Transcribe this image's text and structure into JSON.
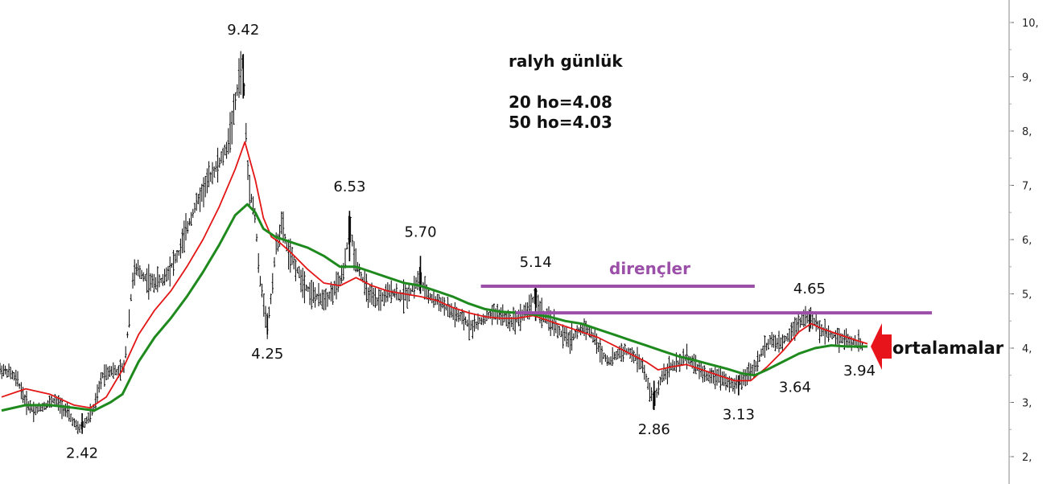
{
  "chart_data": {
    "type": "line",
    "title": "ralyh günlük",
    "title_lines": [
      "20 ho=4.08",
      "50 ho=4.03"
    ],
    "y_axis": {
      "side": "right",
      "ylim": [
        1.5,
        10.4
      ],
      "ticks": [
        2,
        3,
        4,
        5,
        6,
        7,
        8,
        9,
        10
      ],
      "tick_labels": [
        "2,",
        "3,",
        "4,",
        "5,",
        "6,",
        "7,",
        "8,",
        "9,",
        "10,"
      ]
    },
    "x_range": [
      0,
      1070
    ],
    "series": [
      {
        "name": "",
        "kind": "price",
        "color": "#000000",
        "points": [
          [
            0,
            3.6
          ],
          [
            10,
            3.55
          ],
          [
            20,
            3.4
          ],
          [
            30,
            3.0
          ],
          [
            40,
            2.85
          ],
          [
            55,
            2.95
          ],
          [
            65,
            3.05
          ],
          [
            80,
            2.85
          ],
          [
            95,
            2.5
          ],
          [
            105,
            2.65
          ],
          [
            115,
            2.9
          ],
          [
            125,
            3.5
          ],
          [
            135,
            3.6
          ],
          [
            145,
            3.55
          ],
          [
            152,
            3.65
          ],
          [
            158,
            4.5
          ],
          [
            163,
            5.3
          ],
          [
            168,
            5.45
          ],
          [
            175,
            5.35
          ],
          [
            185,
            5.2
          ],
          [
            200,
            5.25
          ],
          [
            210,
            5.5
          ],
          [
            220,
            5.75
          ],
          [
            230,
            6.2
          ],
          [
            240,
            6.6
          ],
          [
            250,
            6.9
          ],
          [
            260,
            7.2
          ],
          [
            270,
            7.4
          ],
          [
            280,
            7.7
          ],
          [
            288,
            8.3
          ],
          [
            295,
            9.0
          ],
          [
            300,
            9.3
          ],
          [
            303,
            8.1
          ],
          [
            306,
            7.2
          ],
          [
            310,
            6.8
          ],
          [
            315,
            6.4
          ],
          [
            320,
            5.3
          ],
          [
            325,
            4.9
          ],
          [
            330,
            4.4
          ],
          [
            335,
            5.0
          ],
          [
            340,
            5.8
          ],
          [
            348,
            6.3
          ],
          [
            355,
            5.8
          ],
          [
            365,
            5.5
          ],
          [
            375,
            5.2
          ],
          [
            385,
            5.0
          ],
          [
            395,
            4.9
          ],
          [
            405,
            4.95
          ],
          [
            415,
            5.1
          ],
          [
            425,
            5.4
          ],
          [
            432,
            6.3
          ],
          [
            438,
            5.7
          ],
          [
            445,
            5.4
          ],
          [
            455,
            5.0
          ],
          [
            465,
            4.85
          ],
          [
            475,
            4.95
          ],
          [
            485,
            5.05
          ],
          [
            495,
            4.95
          ],
          [
            505,
            5.0
          ],
          [
            515,
            5.2
          ],
          [
            520,
            5.3
          ],
          [
            525,
            5.05
          ],
          [
            535,
            4.9
          ],
          [
            545,
            4.85
          ],
          [
            555,
            4.7
          ],
          [
            565,
            4.6
          ],
          [
            575,
            4.5
          ],
          [
            585,
            4.4
          ],
          [
            595,
            4.5
          ],
          [
            605,
            4.6
          ],
          [
            615,
            4.65
          ],
          [
            625,
            4.55
          ],
          [
            635,
            4.5
          ],
          [
            645,
            4.6
          ],
          [
            655,
            4.75
          ],
          [
            663,
            5.0
          ],
          [
            668,
            4.7
          ],
          [
            675,
            4.55
          ],
          [
            685,
            4.45
          ],
          [
            695,
            4.25
          ],
          [
            705,
            4.15
          ],
          [
            715,
            4.3
          ],
          [
            725,
            4.4
          ],
          [
            735,
            4.2
          ],
          [
            745,
            3.9
          ],
          [
            755,
            3.75
          ],
          [
            765,
            3.9
          ],
          [
            775,
            3.95
          ],
          [
            785,
            3.85
          ],
          [
            795,
            3.7
          ],
          [
            805,
            3.2
          ],
          [
            810,
            3.0
          ],
          [
            815,
            3.25
          ],
          [
            820,
            3.5
          ],
          [
            830,
            3.65
          ],
          [
            840,
            3.7
          ],
          [
            850,
            3.85
          ],
          [
            860,
            3.7
          ],
          [
            870,
            3.55
          ],
          [
            880,
            3.45
          ],
          [
            890,
            3.5
          ],
          [
            900,
            3.4
          ],
          [
            910,
            3.3
          ],
          [
            918,
            3.4
          ],
          [
            925,
            3.5
          ],
          [
            935,
            3.65
          ],
          [
            945,
            3.95
          ],
          [
            955,
            4.15
          ],
          [
            965,
            4.05
          ],
          [
            975,
            4.2
          ],
          [
            985,
            4.4
          ],
          [
            995,
            4.55
          ],
          [
            1003,
            4.6
          ],
          [
            1010,
            4.45
          ],
          [
            1020,
            4.3
          ],
          [
            1030,
            4.25
          ],
          [
            1040,
            4.2
          ],
          [
            1050,
            4.15
          ],
          [
            1060,
            4.1
          ],
          [
            1070,
            4.05
          ]
        ]
      },
      {
        "name": "",
        "kind": "ma20",
        "color": "#e31515",
        "points": [
          [
            0,
            3.1
          ],
          [
            30,
            3.25
          ],
          [
            60,
            3.15
          ],
          [
            90,
            2.95
          ],
          [
            110,
            2.9
          ],
          [
            130,
            3.1
          ],
          [
            150,
            3.6
          ],
          [
            170,
            4.25
          ],
          [
            190,
            4.7
          ],
          [
            210,
            5.05
          ],
          [
            230,
            5.5
          ],
          [
            250,
            6.0
          ],
          [
            270,
            6.6
          ],
          [
            290,
            7.3
          ],
          [
            302,
            7.8
          ],
          [
            315,
            7.1
          ],
          [
            325,
            6.4
          ],
          [
            335,
            6.05
          ],
          [
            345,
            5.95
          ],
          [
            360,
            5.75
          ],
          [
            380,
            5.45
          ],
          [
            400,
            5.2
          ],
          [
            420,
            5.15
          ],
          [
            440,
            5.3
          ],
          [
            460,
            5.15
          ],
          [
            480,
            5.05
          ],
          [
            500,
            5.0
          ],
          [
            520,
            4.95
          ],
          [
            540,
            4.88
          ],
          [
            560,
            4.75
          ],
          [
            580,
            4.65
          ],
          [
            600,
            4.58
          ],
          [
            620,
            4.55
          ],
          [
            640,
            4.55
          ],
          [
            660,
            4.6
          ],
          [
            680,
            4.5
          ],
          [
            700,
            4.4
          ],
          [
            720,
            4.3
          ],
          [
            740,
            4.2
          ],
          [
            760,
            4.05
          ],
          [
            780,
            3.9
          ],
          [
            800,
            3.75
          ],
          [
            815,
            3.6
          ],
          [
            830,
            3.65
          ],
          [
            850,
            3.7
          ],
          [
            870,
            3.6
          ],
          [
            890,
            3.5
          ],
          [
            910,
            3.4
          ],
          [
            930,
            3.4
          ],
          [
            950,
            3.65
          ],
          [
            970,
            3.95
          ],
          [
            990,
            4.3
          ],
          [
            1005,
            4.45
          ],
          [
            1020,
            4.35
          ],
          [
            1040,
            4.25
          ],
          [
            1060,
            4.15
          ],
          [
            1075,
            4.08
          ]
        ]
      },
      {
        "name": "",
        "kind": "ma50",
        "color": "#1e8a1e",
        "points": [
          [
            0,
            2.85
          ],
          [
            30,
            2.95
          ],
          [
            60,
            2.95
          ],
          [
            90,
            2.9
          ],
          [
            115,
            2.85
          ],
          [
            135,
            3.0
          ],
          [
            150,
            3.15
          ],
          [
            170,
            3.75
          ],
          [
            190,
            4.2
          ],
          [
            210,
            4.55
          ],
          [
            230,
            4.95
          ],
          [
            250,
            5.4
          ],
          [
            270,
            5.9
          ],
          [
            290,
            6.45
          ],
          [
            305,
            6.65
          ],
          [
            315,
            6.5
          ],
          [
            325,
            6.2
          ],
          [
            340,
            6.05
          ],
          [
            360,
            5.95
          ],
          [
            380,
            5.85
          ],
          [
            400,
            5.7
          ],
          [
            420,
            5.5
          ],
          [
            440,
            5.5
          ],
          [
            460,
            5.4
          ],
          [
            480,
            5.3
          ],
          [
            500,
            5.2
          ],
          [
            520,
            5.15
          ],
          [
            540,
            5.05
          ],
          [
            560,
            4.95
          ],
          [
            580,
            4.82
          ],
          [
            600,
            4.72
          ],
          [
            620,
            4.67
          ],
          [
            640,
            4.65
          ],
          [
            660,
            4.62
          ],
          [
            680,
            4.58
          ],
          [
            700,
            4.5
          ],
          [
            720,
            4.45
          ],
          [
            740,
            4.35
          ],
          [
            760,
            4.25
          ],
          [
            780,
            4.15
          ],
          [
            800,
            4.05
          ],
          [
            820,
            3.95
          ],
          [
            840,
            3.85
          ],
          [
            860,
            3.78
          ],
          [
            880,
            3.7
          ],
          [
            900,
            3.62
          ],
          [
            920,
            3.53
          ],
          [
            935,
            3.5
          ],
          [
            950,
            3.6
          ],
          [
            970,
            3.75
          ],
          [
            990,
            3.9
          ],
          [
            1010,
            4.0
          ],
          [
            1030,
            4.05
          ],
          [
            1050,
            4.03
          ],
          [
            1075,
            4.03
          ]
        ]
      }
    ],
    "resistance_lines": [
      {
        "y": 5.14,
        "x_start": 595,
        "x_end": 935
      },
      {
        "y": 4.65,
        "x_start": 638,
        "x_end": 1155
      }
    ],
    "annotations": [
      {
        "text": "9.42",
        "x": 300,
        "y": 9.42,
        "pos": "above"
      },
      {
        "text": "6.53",
        "x": 432,
        "y": 6.53,
        "pos": "above"
      },
      {
        "text": "5.70",
        "x": 520,
        "y": 5.7,
        "pos": "above"
      },
      {
        "text": "5.14",
        "x": 663,
        "y": 5.14,
        "pos": "above"
      },
      {
        "text": "4.65",
        "x": 1003,
        "y": 4.65,
        "pos": "above"
      },
      {
        "text": "4.25",
        "x": 330,
        "y": 4.25,
        "pos": "below"
      },
      {
        "text": "2.42",
        "x": 100,
        "y": 2.42,
        "pos": "below"
      },
      {
        "text": "2.86",
        "x": 810,
        "y": 2.86,
        "pos": "below"
      },
      {
        "text": "3.13",
        "x": 915,
        "y": 3.13,
        "pos": "below"
      },
      {
        "text": "3.64",
        "x": 985,
        "y": 3.64,
        "pos": "below"
      },
      {
        "text": "3.94",
        "x": 1065,
        "y": 3.94,
        "pos": "below"
      }
    ],
    "resistance_label": "dirençler",
    "average_label": "ortalamalar",
    "colors": {
      "resistance": "#9b4fa8",
      "arrow": "#e8141c",
      "price": "#000000",
      "ma20": "#e31515",
      "ma50": "#1e8a1e"
    },
    "grid": false
  }
}
